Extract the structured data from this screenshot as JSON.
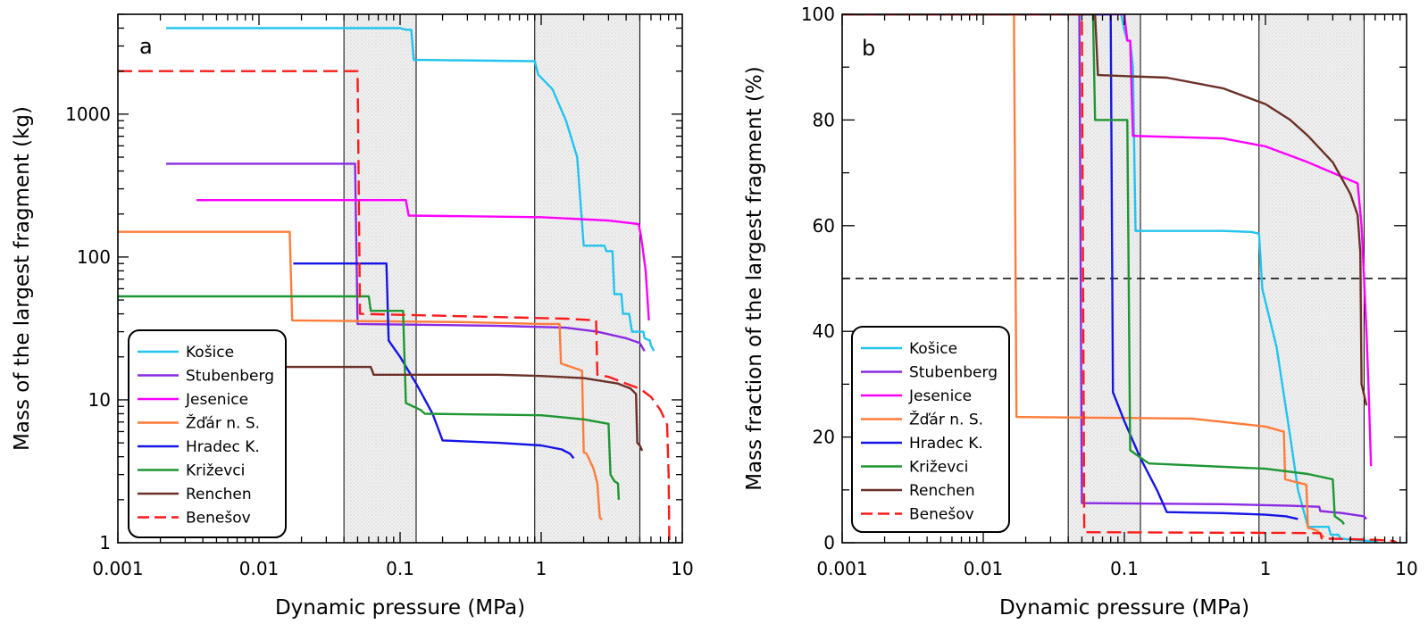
{
  "chart_data": [
    {
      "type": "line",
      "panel_label": "a",
      "xlabel": "Dynamic pressure (MPa)",
      "ylabel": "Mass of the largest fragment (kg)",
      "xscale": "log",
      "yscale": "log",
      "xlim": [
        0.001,
        10
      ],
      "ylim": [
        1,
        5000
      ],
      "x_ticks": [
        {
          "value": 0.001,
          "label": "0.001"
        },
        {
          "value": 0.01,
          "label": "0.01"
        },
        {
          "value": 0.1,
          "label": "0.1"
        },
        {
          "value": 1,
          "label": "1"
        },
        {
          "value": 10,
          "label": "10"
        }
      ],
      "y_ticks": [
        {
          "value": 1,
          "label": "1"
        },
        {
          "value": 10,
          "label": "10"
        },
        {
          "value": 100,
          "label": "100"
        },
        {
          "value": 1000,
          "label": "1000"
        }
      ],
      "shaded_bands": [
        [
          0.04,
          0.13
        ],
        [
          0.9,
          5.0
        ]
      ],
      "legend_position": "bottom-left",
      "series": [
        {
          "name": "Košice",
          "color": "#22c4ee",
          "dash": false,
          "points": [
            [
              0.0022,
              4000
            ],
            [
              0.1,
              4000
            ],
            [
              0.11,
              3900
            ],
            [
              0.12,
              3900
            ],
            [
              0.125,
              2400
            ],
            [
              0.85,
              2350
            ],
            [
              0.9,
              2350
            ],
            [
              0.95,
              1900
            ],
            [
              1.2,
              1500
            ],
            [
              1.5,
              900
            ],
            [
              1.8,
              500
            ],
            [
              2.0,
              120
            ],
            [
              2.8,
              120
            ],
            [
              2.9,
              110
            ],
            [
              3.2,
              110
            ],
            [
              3.3,
              55
            ],
            [
              3.7,
              55
            ],
            [
              3.8,
              40
            ],
            [
              4.2,
              40
            ],
            [
              4.4,
              30
            ],
            [
              5.3,
              30
            ],
            [
              5.4,
              27
            ],
            [
              5.9,
              26
            ],
            [
              6.0,
              24
            ],
            [
              6.3,
              22
            ]
          ]
        },
        {
          "name": "Stubenberg",
          "color": "#8a2be2",
          "dash": false,
          "points": [
            [
              0.0022,
              450
            ],
            [
              0.048,
              450
            ],
            [
              0.05,
              34
            ],
            [
              0.5,
              33
            ],
            [
              1.5,
              32
            ],
            [
              2.5,
              30
            ],
            [
              4.0,
              27
            ],
            [
              5.0,
              25
            ],
            [
              5.4,
              22
            ]
          ]
        },
        {
          "name": "Jesenice",
          "color": "#ff00ff",
          "dash": false,
          "points": [
            [
              0.0036,
              250
            ],
            [
              0.11,
              250
            ],
            [
              0.115,
              195
            ],
            [
              1.0,
              190
            ],
            [
              3.0,
              180
            ],
            [
              4.9,
              170
            ],
            [
              5.1,
              140
            ],
            [
              5.5,
              80
            ],
            [
              5.8,
              36
            ]
          ]
        },
        {
          "name": "Žďár n. S.",
          "color": "#ff7c3a",
          "dash": false,
          "points": [
            [
              0.001,
              150
            ],
            [
              0.0165,
              150
            ],
            [
              0.0172,
              36
            ],
            [
              0.3,
              35
            ],
            [
              1.0,
              34
            ],
            [
              1.35,
              34
            ],
            [
              1.38,
              18
            ],
            [
              1.95,
              16
            ],
            [
              2.0,
              4.3
            ],
            [
              2.1,
              4.2
            ],
            [
              2.35,
              3.3
            ],
            [
              2.5,
              2.6
            ],
            [
              2.6,
              1.5
            ],
            [
              2.7,
              1.45
            ]
          ]
        },
        {
          "name": "Hradec K.",
          "color": "#1515e5",
          "dash": false,
          "points": [
            [
              0.0175,
              90
            ],
            [
              0.08,
              90
            ],
            [
              0.083,
              26
            ],
            [
              0.1,
              20
            ],
            [
              0.13,
              13
            ],
            [
              0.17,
              8
            ],
            [
              0.2,
              5.2
            ],
            [
              0.5,
              5.0
            ],
            [
              1.0,
              4.8
            ],
            [
              1.4,
              4.5
            ],
            [
              1.6,
              4.2
            ],
            [
              1.7,
              3.9
            ]
          ]
        },
        {
          "name": "Križevci",
          "color": "#1e9632",
          "dash": false,
          "points": [
            [
              0.001,
              53
            ],
            [
              0.06,
              53
            ],
            [
              0.062,
              42
            ],
            [
              0.105,
              42
            ],
            [
              0.11,
              9.5
            ],
            [
              0.14,
              8.5
            ],
            [
              0.15,
              8.0
            ],
            [
              1.0,
              7.8
            ],
            [
              2.0,
              7.3
            ],
            [
              3.0,
              6.8
            ],
            [
              3.1,
              3.0
            ],
            [
              3.3,
              2.7
            ],
            [
              3.5,
              2.6
            ],
            [
              3.55,
              2.0
            ]
          ]
        },
        {
          "name": "Renchen",
          "color": "#6b3028",
          "dash": false,
          "points": [
            [
              0.0022,
              17
            ],
            [
              0.062,
              17
            ],
            [
              0.065,
              15
            ],
            [
              0.5,
              15
            ],
            [
              1.0,
              14.7
            ],
            [
              2.0,
              14.2
            ],
            [
              3.5,
              13.0
            ],
            [
              4.3,
              12.0
            ],
            [
              4.7,
              11.0
            ],
            [
              4.8,
              5.0
            ],
            [
              5.0,
              4.8
            ],
            [
              5.2,
              4.4
            ]
          ]
        },
        {
          "name": "Benešov",
          "color": "#ff1a1a",
          "dash": true,
          "points": [
            [
              0.001,
              2000
            ],
            [
              0.05,
              2000
            ],
            [
              0.052,
              40
            ],
            [
              0.5,
              38
            ],
            [
              1.5,
              37
            ],
            [
              2.45,
              36
            ],
            [
              2.5,
              15
            ],
            [
              3.0,
              14.5
            ],
            [
              4.0,
              13
            ],
            [
              5.0,
              12
            ],
            [
              6.0,
              10.5
            ],
            [
              7.0,
              8.5
            ],
            [
              7.8,
              6.7
            ],
            [
              8.0,
              3.0
            ],
            [
              8.1,
              1.0
            ]
          ]
        }
      ]
    },
    {
      "type": "line",
      "panel_label": "b",
      "xlabel": "Dynamic pressure (MPa)",
      "ylabel": "Mass fraction of the largest fragment (%)",
      "xscale": "log",
      "yscale": "linear",
      "xlim": [
        0.001,
        10
      ],
      "ylim": [
        0,
        100
      ],
      "x_ticks": [
        {
          "value": 0.001,
          "label": "0.001"
        },
        {
          "value": 0.01,
          "label": "0.01"
        },
        {
          "value": 0.1,
          "label": "0.1"
        },
        {
          "value": 1,
          "label": "1"
        },
        {
          "value": 10,
          "label": "10"
        }
      ],
      "y_ticks": [
        {
          "value": 0,
          "label": "0"
        },
        {
          "value": 20,
          "label": "20"
        },
        {
          "value": 40,
          "label": "40"
        },
        {
          "value": 60,
          "label": "60"
        },
        {
          "value": 80,
          "label": "80"
        },
        {
          "value": 100,
          "label": "100"
        }
      ],
      "shaded_bands": [
        [
          0.04,
          0.13
        ],
        [
          0.9,
          5.0
        ]
      ],
      "reference_line_y": 50,
      "legend_position": "bottom-left",
      "series": [
        {
          "name": "Košice",
          "color": "#22c4ee",
          "dash": false,
          "points": [
            [
              0.001,
              100
            ],
            [
              0.095,
              100
            ],
            [
              0.1,
              97
            ],
            [
              0.105,
              95
            ],
            [
              0.11,
              95
            ],
            [
              0.115,
              90
            ],
            [
              0.12,
              59
            ],
            [
              0.5,
              59
            ],
            [
              0.8,
              58.8
            ],
            [
              0.9,
              58.5
            ],
            [
              0.95,
              48
            ],
            [
              1.2,
              37
            ],
            [
              1.5,
              20
            ],
            [
              1.7,
              10
            ],
            [
              2.0,
              3
            ],
            [
              2.8,
              3
            ],
            [
              2.9,
              1.5
            ],
            [
              3.3,
              1.5
            ],
            [
              3.4,
              0.8
            ],
            [
              4.0,
              0.6
            ],
            [
              5.0,
              0.4
            ],
            [
              6.3,
              0.3
            ]
          ]
        },
        {
          "name": "Stubenberg",
          "color": "#8a2be2",
          "dash": false,
          "points": [
            [
              0.001,
              100
            ],
            [
              0.048,
              100
            ],
            [
              0.05,
              7.5
            ],
            [
              0.5,
              7.3
            ],
            [
              1.5,
              7.0
            ],
            [
              2.4,
              6.8
            ],
            [
              2.45,
              6.0
            ],
            [
              3.5,
              5.6
            ],
            [
              5.0,
              5.0
            ],
            [
              5.2,
              4.5
            ]
          ]
        },
        {
          "name": "Jesenice",
          "color": "#ff00ff",
          "dash": false,
          "points": [
            [
              0.001,
              100
            ],
            [
              0.1,
              100
            ],
            [
              0.105,
              95
            ],
            [
              0.11,
              95
            ],
            [
              0.115,
              77
            ],
            [
              0.5,
              76.5
            ],
            [
              1.0,
              75
            ],
            [
              2.0,
              72
            ],
            [
              3.0,
              70
            ],
            [
              4.5,
              68
            ],
            [
              4.8,
              60
            ],
            [
              5.0,
              50
            ],
            [
              5.2,
              40
            ],
            [
              5.4,
              28
            ],
            [
              5.6,
              14.5
            ]
          ]
        },
        {
          "name": "Žďár n. S.",
          "color": "#ff7c3a",
          "dash": false,
          "points": [
            [
              0.001,
              100
            ],
            [
              0.0165,
              100
            ],
            [
              0.0172,
              23.8
            ],
            [
              0.3,
              23.5
            ],
            [
              1.0,
              22
            ],
            [
              1.35,
              21
            ],
            [
              1.38,
              12
            ],
            [
              1.95,
              11
            ],
            [
              2.0,
              2.8
            ],
            [
              2.1,
              2.7
            ],
            [
              2.35,
              2.2
            ],
            [
              2.6,
              1.0
            ]
          ]
        },
        {
          "name": "Hradec K.",
          "color": "#1515e5",
          "dash": false,
          "points": [
            [
              0.001,
              100
            ],
            [
              0.08,
              100
            ],
            [
              0.083,
              28.5
            ],
            [
              0.1,
              23
            ],
            [
              0.13,
              16
            ],
            [
              0.17,
              10
            ],
            [
              0.2,
              5.8
            ],
            [
              0.5,
              5.6
            ],
            [
              1.0,
              5.3
            ],
            [
              1.4,
              5.0
            ],
            [
              1.7,
              4.5
            ]
          ]
        },
        {
          "name": "Križevci",
          "color": "#1e9632",
          "dash": false,
          "points": [
            [
              0.001,
              100
            ],
            [
              0.06,
              100
            ],
            [
              0.062,
              80
            ],
            [
              0.105,
              80
            ],
            [
              0.11,
              17.5
            ],
            [
              0.14,
              15.5
            ],
            [
              0.15,
              15
            ],
            [
              1.0,
              14
            ],
            [
              2.0,
              13
            ],
            [
              3.0,
              12
            ],
            [
              3.1,
              5
            ],
            [
              3.3,
              4.5
            ],
            [
              3.5,
              4
            ],
            [
              3.6,
              3.5
            ]
          ]
        },
        {
          "name": "Renchen",
          "color": "#6b3028",
          "dash": false,
          "points": [
            [
              0.001,
              100
            ],
            [
              0.062,
              100
            ],
            [
              0.065,
              88.5
            ],
            [
              0.2,
              88
            ],
            [
              0.5,
              86
            ],
            [
              1.0,
              83
            ],
            [
              1.5,
              80
            ],
            [
              2.0,
              77
            ],
            [
              3.0,
              72
            ],
            [
              4.0,
              66
            ],
            [
              4.5,
              62
            ],
            [
              4.7,
              55
            ],
            [
              4.8,
              30
            ],
            [
              5.0,
              28
            ],
            [
              5.2,
              26
            ]
          ]
        },
        {
          "name": "Benešov",
          "color": "#ff1a1a",
          "dash": true,
          "points": [
            [
              0.001,
              100
            ],
            [
              0.05,
              100
            ],
            [
              0.052,
              2.0
            ],
            [
              0.5,
              1.9
            ],
            [
              1.5,
              1.85
            ],
            [
              2.45,
              1.8
            ],
            [
              2.5,
              0.8
            ],
            [
              4.0,
              0.7
            ],
            [
              6.0,
              0.55
            ],
            [
              8.0,
              0.35
            ],
            [
              8.5,
              0.05
            ]
          ]
        }
      ]
    }
  ]
}
